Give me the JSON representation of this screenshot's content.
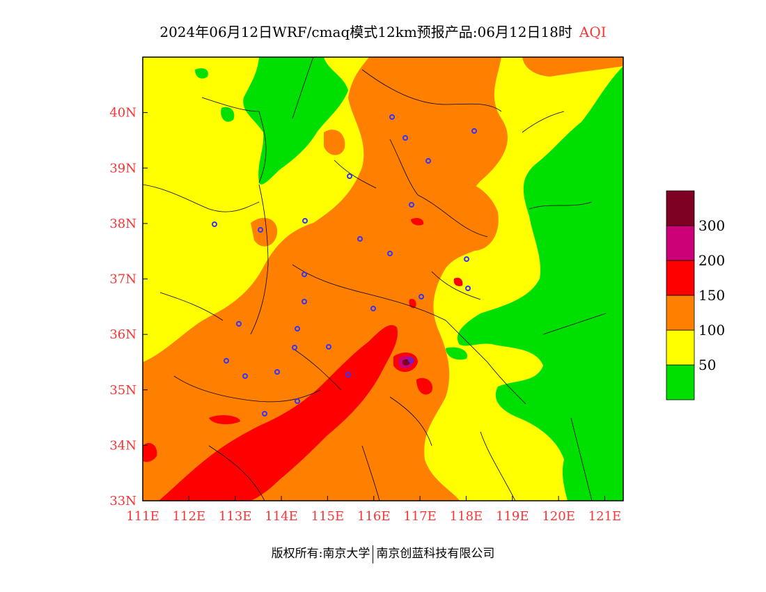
{
  "title": {
    "text": "2024年06月12日WRF/cmaq模式12km预报产品:06月12日18时",
    "variable": "AQI"
  },
  "axes": {
    "lon_ticks": [
      "111E",
      "112E",
      "113E",
      "114E",
      "115E",
      "116E",
      "117E",
      "118E",
      "119E",
      "120E",
      "121E"
    ],
    "lat_ticks": [
      "33N",
      "34N",
      "35N",
      "36N",
      "37N",
      "38N",
      "39N",
      "40N"
    ],
    "lon_range": [
      111,
      121.4
    ],
    "lat_range": [
      33,
      41
    ]
  },
  "legend": {
    "bins": [
      {
        "label": "",
        "color": "#00e000"
      },
      {
        "label": "50",
        "color": "#ffff00"
      },
      {
        "label": "100",
        "color": "#ff8000"
      },
      {
        "label": "150",
        "color": "#ff0000"
      },
      {
        "label": "200",
        "color": "#cc0077"
      },
      {
        "label": "300",
        "color": "#7e0023"
      }
    ]
  },
  "footer": {
    "left": "版权所有:南京大学",
    "right": "南京创蓝科技有限公司"
  },
  "colors": {
    "good": "#00e000",
    "moderate": "#ffff00",
    "sensitive": "#ff8000",
    "unhealthy": "#ff0000",
    "very_unhealthy": "#cc0077",
    "hazardous": "#7e0023",
    "tick_text": "#ff3333",
    "city_marker": "#3333ff"
  }
}
